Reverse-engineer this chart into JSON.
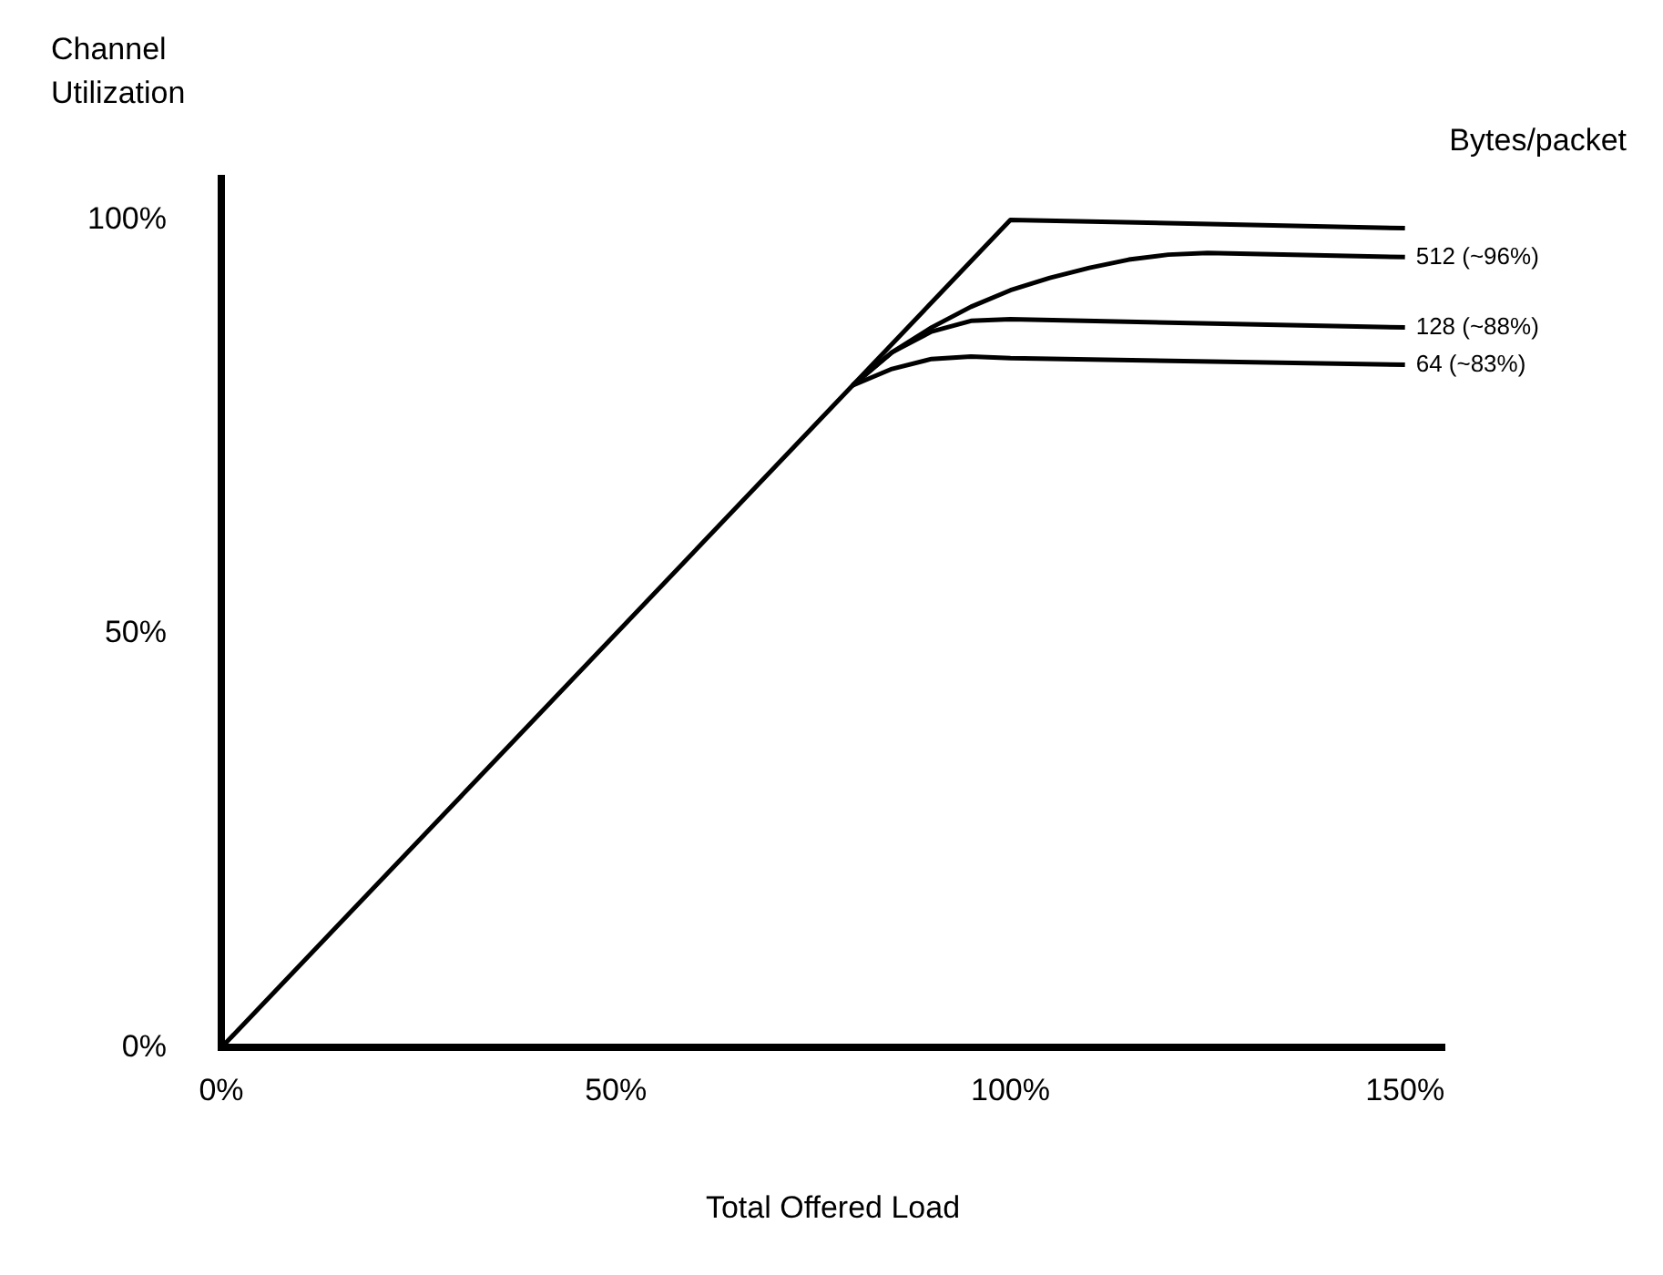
{
  "chart_data": {
    "type": "line",
    "xlabel": "Total Offered Load",
    "ylabel": "Channel Utilization",
    "legend_title": "Bytes/packet",
    "xlim": [
      0,
      155
    ],
    "ylim": [
      0,
      105
    ],
    "xticks": [
      {
        "value": 0,
        "label": "0%"
      },
      {
        "value": 50,
        "label": "50%"
      },
      {
        "value": 100,
        "label": "100%"
      },
      {
        "value": 150,
        "label": "150%"
      }
    ],
    "yticks": [
      {
        "value": 0,
        "label": "0%"
      },
      {
        "value": 50,
        "label": "50%"
      },
      {
        "value": 100,
        "label": "100%"
      }
    ],
    "grid": false,
    "legend": false,
    "marker": "none",
    "line_style": "solid",
    "series": [
      {
        "color": "#000000",
        "x": [
          0,
          100,
          150
        ],
        "values": [
          0,
          100,
          99
        ]
      },
      {
        "name": "512 (~96%)",
        "color": "#000000",
        "x": [
          80,
          85,
          90,
          95,
          100,
          105,
          110,
          115,
          120,
          125,
          150
        ],
        "values": [
          80,
          84,
          87,
          89.5,
          91.5,
          93,
          94.2,
          95.2,
          95.8,
          96,
          95.5
        ]
      },
      {
        "name": "128 (~88%)",
        "color": "#000000",
        "x": [
          80,
          85,
          90,
          95,
          100,
          150
        ],
        "values": [
          80,
          84,
          86.5,
          87.8,
          88,
          87
        ]
      },
      {
        "name": "64 (~83%)",
        "color": "#000000",
        "x": [
          80,
          85,
          90,
          95,
          100,
          150
        ],
        "values": [
          80,
          82,
          83.2,
          83.5,
          83.3,
          82.5
        ]
      }
    ]
  }
}
